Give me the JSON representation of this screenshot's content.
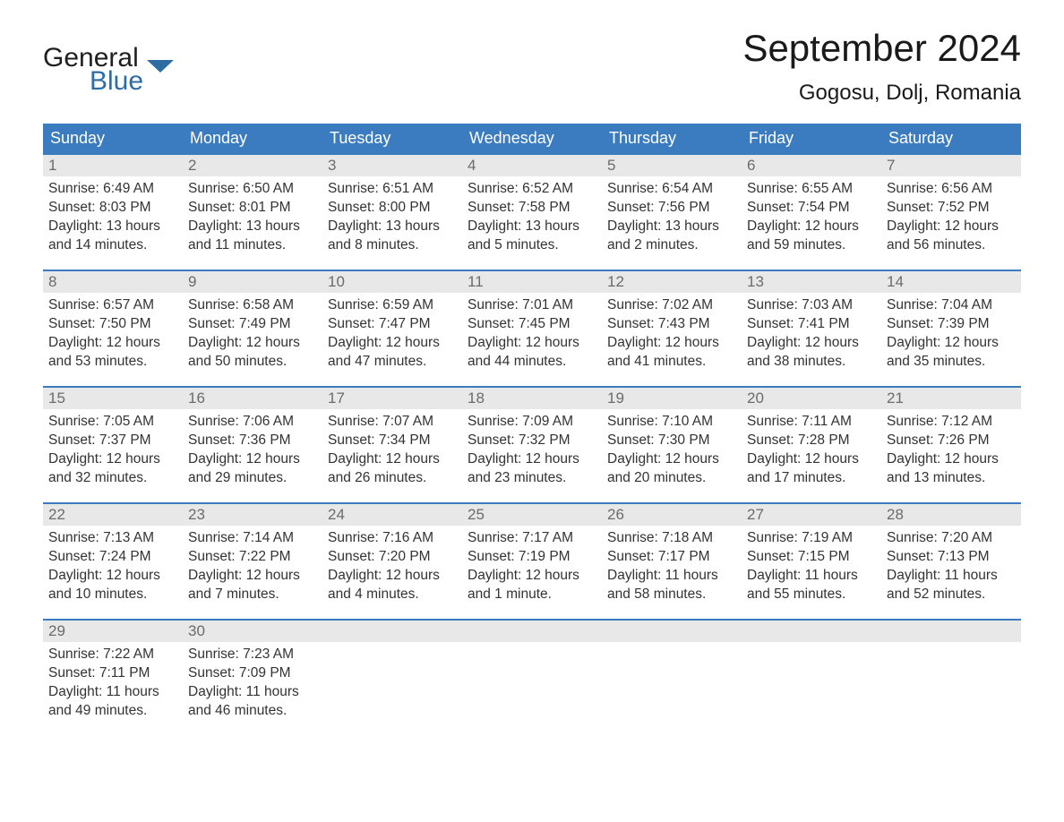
{
  "brand": {
    "word1": "General",
    "word2": "Blue",
    "word1_color": "#1f1f1f",
    "word2_color": "#2e6da4",
    "flag_color": "#2e6da4"
  },
  "title": "September 2024",
  "location": "Gogosu, Dolj, Romania",
  "colors": {
    "header_bg": "#3b7bbf",
    "header_text": "#ffffff",
    "daynum_bg": "#e8e8e8",
    "daynum_text": "#6b6b6b",
    "body_text": "#333333",
    "row_border": "#3b7bbf",
    "page_bg": "#ffffff"
  },
  "typography": {
    "title_fontsize": 42,
    "location_fontsize": 24,
    "dayheader_fontsize": 18,
    "daynum_fontsize": 17,
    "body_fontsize": 15.5,
    "font_family": "Arial"
  },
  "day_names": [
    "Sunday",
    "Monday",
    "Tuesday",
    "Wednesday",
    "Thursday",
    "Friday",
    "Saturday"
  ],
  "weeks": [
    [
      {
        "num": "1",
        "sunrise": "Sunrise: 6:49 AM",
        "sunset": "Sunset: 8:03 PM",
        "day1": "Daylight: 13 hours",
        "day2": "and 14 minutes."
      },
      {
        "num": "2",
        "sunrise": "Sunrise: 6:50 AM",
        "sunset": "Sunset: 8:01 PM",
        "day1": "Daylight: 13 hours",
        "day2": "and 11 minutes."
      },
      {
        "num": "3",
        "sunrise": "Sunrise: 6:51 AM",
        "sunset": "Sunset: 8:00 PM",
        "day1": "Daylight: 13 hours",
        "day2": "and 8 minutes."
      },
      {
        "num": "4",
        "sunrise": "Sunrise: 6:52 AM",
        "sunset": "Sunset: 7:58 PM",
        "day1": "Daylight: 13 hours",
        "day2": "and 5 minutes."
      },
      {
        "num": "5",
        "sunrise": "Sunrise: 6:54 AM",
        "sunset": "Sunset: 7:56 PM",
        "day1": "Daylight: 13 hours",
        "day2": "and 2 minutes."
      },
      {
        "num": "6",
        "sunrise": "Sunrise: 6:55 AM",
        "sunset": "Sunset: 7:54 PM",
        "day1": "Daylight: 12 hours",
        "day2": "and 59 minutes."
      },
      {
        "num": "7",
        "sunrise": "Sunrise: 6:56 AM",
        "sunset": "Sunset: 7:52 PM",
        "day1": "Daylight: 12 hours",
        "day2": "and 56 minutes."
      }
    ],
    [
      {
        "num": "8",
        "sunrise": "Sunrise: 6:57 AM",
        "sunset": "Sunset: 7:50 PM",
        "day1": "Daylight: 12 hours",
        "day2": "and 53 minutes."
      },
      {
        "num": "9",
        "sunrise": "Sunrise: 6:58 AM",
        "sunset": "Sunset: 7:49 PM",
        "day1": "Daylight: 12 hours",
        "day2": "and 50 minutes."
      },
      {
        "num": "10",
        "sunrise": "Sunrise: 6:59 AM",
        "sunset": "Sunset: 7:47 PM",
        "day1": "Daylight: 12 hours",
        "day2": "and 47 minutes."
      },
      {
        "num": "11",
        "sunrise": "Sunrise: 7:01 AM",
        "sunset": "Sunset: 7:45 PM",
        "day1": "Daylight: 12 hours",
        "day2": "and 44 minutes."
      },
      {
        "num": "12",
        "sunrise": "Sunrise: 7:02 AM",
        "sunset": "Sunset: 7:43 PM",
        "day1": "Daylight: 12 hours",
        "day2": "and 41 minutes."
      },
      {
        "num": "13",
        "sunrise": "Sunrise: 7:03 AM",
        "sunset": "Sunset: 7:41 PM",
        "day1": "Daylight: 12 hours",
        "day2": "and 38 minutes."
      },
      {
        "num": "14",
        "sunrise": "Sunrise: 7:04 AM",
        "sunset": "Sunset: 7:39 PM",
        "day1": "Daylight: 12 hours",
        "day2": "and 35 minutes."
      }
    ],
    [
      {
        "num": "15",
        "sunrise": "Sunrise: 7:05 AM",
        "sunset": "Sunset: 7:37 PM",
        "day1": "Daylight: 12 hours",
        "day2": "and 32 minutes."
      },
      {
        "num": "16",
        "sunrise": "Sunrise: 7:06 AM",
        "sunset": "Sunset: 7:36 PM",
        "day1": "Daylight: 12 hours",
        "day2": "and 29 minutes."
      },
      {
        "num": "17",
        "sunrise": "Sunrise: 7:07 AM",
        "sunset": "Sunset: 7:34 PM",
        "day1": "Daylight: 12 hours",
        "day2": "and 26 minutes."
      },
      {
        "num": "18",
        "sunrise": "Sunrise: 7:09 AM",
        "sunset": "Sunset: 7:32 PM",
        "day1": "Daylight: 12 hours",
        "day2": "and 23 minutes."
      },
      {
        "num": "19",
        "sunrise": "Sunrise: 7:10 AM",
        "sunset": "Sunset: 7:30 PM",
        "day1": "Daylight: 12 hours",
        "day2": "and 20 minutes."
      },
      {
        "num": "20",
        "sunrise": "Sunrise: 7:11 AM",
        "sunset": "Sunset: 7:28 PM",
        "day1": "Daylight: 12 hours",
        "day2": "and 17 minutes."
      },
      {
        "num": "21",
        "sunrise": "Sunrise: 7:12 AM",
        "sunset": "Sunset: 7:26 PM",
        "day1": "Daylight: 12 hours",
        "day2": "and 13 minutes."
      }
    ],
    [
      {
        "num": "22",
        "sunrise": "Sunrise: 7:13 AM",
        "sunset": "Sunset: 7:24 PM",
        "day1": "Daylight: 12 hours",
        "day2": "and 10 minutes."
      },
      {
        "num": "23",
        "sunrise": "Sunrise: 7:14 AM",
        "sunset": "Sunset: 7:22 PM",
        "day1": "Daylight: 12 hours",
        "day2": "and 7 minutes."
      },
      {
        "num": "24",
        "sunrise": "Sunrise: 7:16 AM",
        "sunset": "Sunset: 7:20 PM",
        "day1": "Daylight: 12 hours",
        "day2": "and 4 minutes."
      },
      {
        "num": "25",
        "sunrise": "Sunrise: 7:17 AM",
        "sunset": "Sunset: 7:19 PM",
        "day1": "Daylight: 12 hours",
        "day2": "and 1 minute."
      },
      {
        "num": "26",
        "sunrise": "Sunrise: 7:18 AM",
        "sunset": "Sunset: 7:17 PM",
        "day1": "Daylight: 11 hours",
        "day2": "and 58 minutes."
      },
      {
        "num": "27",
        "sunrise": "Sunrise: 7:19 AM",
        "sunset": "Sunset: 7:15 PM",
        "day1": "Daylight: 11 hours",
        "day2": "and 55 minutes."
      },
      {
        "num": "28",
        "sunrise": "Sunrise: 7:20 AM",
        "sunset": "Sunset: 7:13 PM",
        "day1": "Daylight: 11 hours",
        "day2": "and 52 minutes."
      }
    ],
    [
      {
        "num": "29",
        "sunrise": "Sunrise: 7:22 AM",
        "sunset": "Sunset: 7:11 PM",
        "day1": "Daylight: 11 hours",
        "day2": "and 49 minutes."
      },
      {
        "num": "30",
        "sunrise": "Sunrise: 7:23 AM",
        "sunset": "Sunset: 7:09 PM",
        "day1": "Daylight: 11 hours",
        "day2": "and 46 minutes."
      },
      null,
      null,
      null,
      null,
      null
    ]
  ]
}
